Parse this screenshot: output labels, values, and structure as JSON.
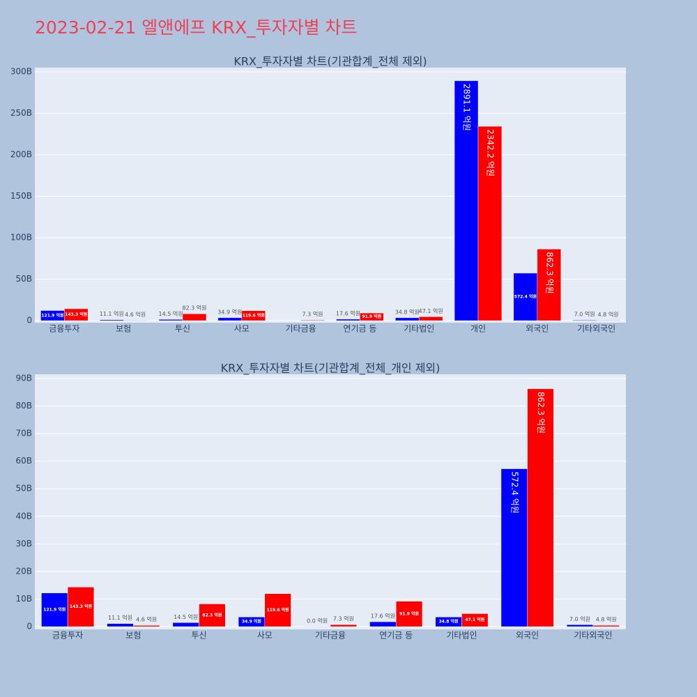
{
  "title": "2023-02-21 엘앤에프 KRX_투자자별 차트",
  "chart_data": [
    {
      "type": "bar",
      "title": "KRX_투자자별 차트(기관합계_전체 제외)",
      "categories": [
        "금융투자",
        "보험",
        "투신",
        "사모",
        "기타금융",
        "연기금 등",
        "기타법인",
        "개인",
        "외국인",
        "기타외국인"
      ],
      "series": [
        {
          "color": "#0000ff",
          "values": [
            12190000000,
            1110000000,
            1450000000,
            3490000000,
            null,
            1760000000,
            3480000000,
            289110000000,
            57240000000,
            700000000
          ],
          "value_labels": [
            "121.9 억원",
            "11.1 억원",
            "14.5 억원",
            "34.9 억원",
            null,
            "17.6 억원",
            "34.8 억원",
            "2891.1 억원",
            "572.4 억원",
            "7.0 억원"
          ]
        },
        {
          "color": "#ff0000",
          "values": [
            14330000000,
            460000000,
            8230000000,
            11960000000,
            730000000,
            9190000000,
            4710000000,
            234220000000,
            86230000000,
            480000000
          ],
          "value_labels": [
            "143.3 억원",
            "4.6 억원",
            "82.3 억원",
            "119.6 억원",
            "7.3 억원",
            "91.9 억원",
            "47.1 억원",
            "2342.2 억원",
            "862.3 억원",
            "4.8 억원"
          ]
        }
      ],
      "ylim": [
        -2500000000,
        305000000000
      ],
      "yticks": [
        0,
        {
          "value": 50000000000,
          "label": "50B"
        },
        {
          "value": 100000000000,
          "label": "100B"
        },
        {
          "value": 150000000000,
          "label": "150B"
        },
        {
          "value": 200000000000,
          "label": "200B"
        },
        {
          "value": 250000000000,
          "label": "250B"
        },
        {
          "value": 300000000000,
          "label": "300B"
        }
      ],
      "grid": true
    },
    {
      "type": "bar",
      "title": "KRX_투자자별 차트(기관합계_전체_개인 제외)",
      "categories": [
        "금융투자",
        "보험",
        "투신",
        "사모",
        "기타금융",
        "연기금 등",
        "기타법인",
        "외국인",
        "기타외국인"
      ],
      "series": [
        {
          "color": "#0000ff",
          "values": [
            12190000000,
            1110000000,
            1450000000,
            3490000000,
            0,
            1760000000,
            3480000000,
            57240000000,
            700000000
          ],
          "value_labels": [
            "121.9 억원",
            "11.1 억원",
            "14.5 억원",
            "34.9 억원",
            "0.0 억원",
            "17.6 억원",
            "34.8 억원",
            "572.4 억원",
            "7.0 억원"
          ]
        },
        {
          "color": "#ff0000",
          "values": [
            14330000000,
            460000000,
            8230000000,
            11960000000,
            730000000,
            9190000000,
            4710000000,
            86230000000,
            480000000
          ],
          "value_labels": [
            "143.3 억원",
            "4.6 억원",
            "82.3 억원",
            "119.6 억원",
            "7.3 억원",
            "91.9 억원",
            "47.1 억원",
            "862.3 억원",
            "4.8 억원"
          ]
        }
      ],
      "ylim": [
        -1000000000,
        91500000000
      ],
      "yticks": [
        0,
        {
          "value": 10000000000,
          "label": "10B"
        },
        {
          "value": 20000000000,
          "label": "20B"
        },
        {
          "value": 30000000000,
          "label": "30B"
        },
        {
          "value": 40000000000,
          "label": "40B"
        },
        {
          "value": 50000000000,
          "label": "50B"
        },
        {
          "value": 60000000000,
          "label": "60B"
        },
        {
          "value": 70000000000,
          "label": "70B"
        },
        {
          "value": 80000000000,
          "label": "80B"
        },
        {
          "value": 90000000000,
          "label": "90B"
        }
      ],
      "grid": true
    }
  ]
}
